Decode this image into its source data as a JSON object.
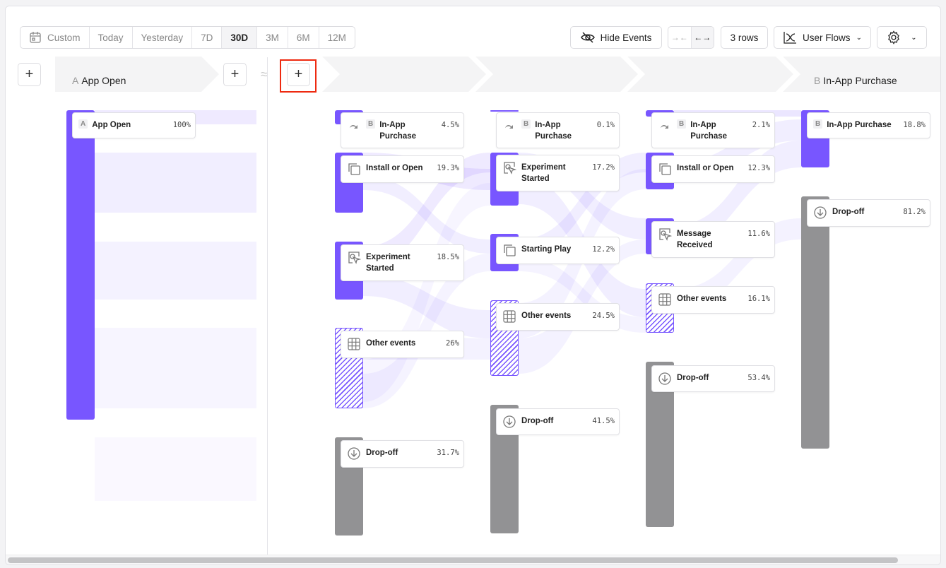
{
  "date_range": {
    "custom": "Custom",
    "options": [
      "Today",
      "Yesterday",
      "7D",
      "30D",
      "3M",
      "6M",
      "12M"
    ],
    "selected": "30D"
  },
  "toolbar": {
    "hide_events": "Hide Events",
    "rows": "3 rows",
    "view": "User Flows"
  },
  "steps": {
    "a_letter": "A",
    "a_label": "App Open",
    "b_letter": "B",
    "b_label": "In-App Purchase"
  },
  "accent": "#7856ff",
  "dropoff_color": "#929294",
  "columns": [
    [
      {
        "name": "App Open",
        "badge": "A",
        "pct": "100%",
        "icon": "badge",
        "style": "purple"
      }
    ],
    [
      {
        "name": "In-App Purchase",
        "badge": "B",
        "pct": "4.5%",
        "icon": "redirect-icon",
        "style": "purple"
      },
      {
        "name": "Install or Open",
        "pct": "19.3%",
        "icon": "copy-icon",
        "style": "purple"
      },
      {
        "name": "Experiment Started",
        "pct": "18.5%",
        "icon": "cursor-click-icon",
        "style": "purple"
      },
      {
        "name": "Other events",
        "pct": "26%",
        "icon": "grid-icon",
        "style": "hatch"
      },
      {
        "name": "Drop-off",
        "pct": "31.7%",
        "icon": "arrow-down-circle-icon",
        "style": "gray"
      }
    ],
    [
      {
        "name": "In-App Purchase",
        "badge": "B",
        "pct": "0.1%",
        "icon": "redirect-icon",
        "style": "purple"
      },
      {
        "name": "Experiment Started",
        "pct": "17.2%",
        "icon": "cursor-click-icon",
        "style": "purple"
      },
      {
        "name": "Starting Play",
        "pct": "12.2%",
        "icon": "copy-icon",
        "style": "purple"
      },
      {
        "name": "Other events",
        "pct": "24.5%",
        "icon": "grid-icon",
        "style": "hatch"
      },
      {
        "name": "Drop-off",
        "pct": "41.5%",
        "icon": "arrow-down-circle-icon",
        "style": "gray"
      }
    ],
    [
      {
        "name": "In-App Purchase",
        "badge": "B",
        "pct": "2.1%",
        "icon": "redirect-icon",
        "style": "purple"
      },
      {
        "name": "Install or Open",
        "pct": "12.3%",
        "icon": "copy-icon",
        "style": "purple"
      },
      {
        "name": "Message Received",
        "pct": "11.6%",
        "icon": "cursor-click-icon",
        "style": "purple"
      },
      {
        "name": "Other events",
        "pct": "16.1%",
        "icon": "grid-icon",
        "style": "hatch"
      },
      {
        "name": "Drop-off",
        "pct": "53.4%",
        "icon": "arrow-down-circle-icon",
        "style": "gray"
      }
    ],
    [
      {
        "name": "In-App Purchase",
        "badge": "B",
        "pct": "18.8%",
        "icon": "badge",
        "style": "purple"
      },
      {
        "name": "Drop-off",
        "pct": "81.2%",
        "icon": "arrow-down-circle-icon",
        "style": "gray"
      }
    ]
  ]
}
